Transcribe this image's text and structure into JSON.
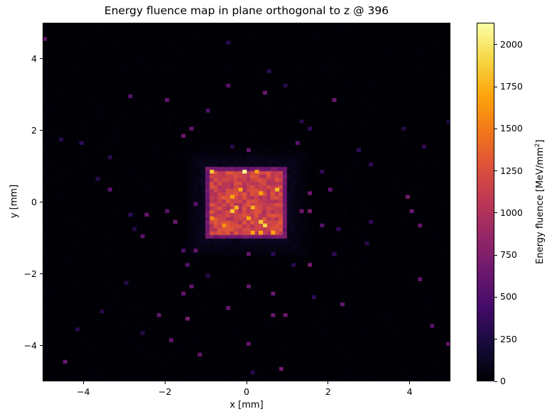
{
  "chart_data": {
    "type": "heatmap",
    "title": "Energy fluence map in plane orthogonal to z @ 396",
    "xlabel": "x [mm]",
    "ylabel": "y [mm]",
    "colorbar_label_main": "Energy fluence [MeV/mm",
    "colorbar_label_sup": "2",
    "colorbar_label_end": "]",
    "colormap": "inferno",
    "xlim": [
      -5,
      5
    ],
    "ylim": [
      -5,
      5
    ],
    "clim": [
      0,
      2130
    ],
    "bins": [
      100,
      100
    ],
    "xticks": [
      -4,
      -2,
      0,
      2,
      4
    ],
    "yticks": [
      -4,
      -2,
      0,
      2,
      4
    ],
    "cticks": [
      0,
      250,
      500,
      750,
      1000,
      1250,
      1500,
      1750,
      2000
    ],
    "field": {
      "x_range": [
        -1,
        1
      ],
      "y_range": [
        -1,
        1
      ],
      "typical_value": 1150,
      "edge_value": 600,
      "halo_value": 90,
      "background_value": 15
    },
    "hot_bins": [
      [
        -0.05,
        0.86,
        2100
      ],
      [
        -0.85,
        0.86,
        1850
      ],
      [
        0.26,
        0.86,
        1650
      ],
      [
        0.77,
        0.37,
        1800
      ],
      [
        -0.14,
        0.37,
        1700
      ],
      [
        0.36,
        0.23,
        1700
      ],
      [
        -0.35,
        0.17,
        1700
      ],
      [
        -0.26,
        -0.15,
        1750
      ],
      [
        -0.35,
        -0.25,
        1850
      ],
      [
        0.16,
        -0.15,
        1750
      ],
      [
        0.05,
        -0.45,
        1700
      ],
      [
        0.36,
        -0.55,
        1850
      ],
      [
        0.46,
        -0.65,
        1900
      ],
      [
        0.66,
        -0.85,
        1700
      ],
      [
        0.16,
        -0.85,
        1700
      ],
      [
        0.36,
        -0.9,
        1700
      ],
      [
        -0.55,
        -0.65,
        1600
      ],
      [
        -0.85,
        -0.45,
        1550
      ]
    ],
    "sparse_bins": [
      [
        -4.95,
        4.55,
        600
      ],
      [
        -0.49,
        4.45,
        300
      ],
      [
        0.54,
        3.65,
        300
      ],
      [
        -0.45,
        3.26,
        550
      ],
      [
        0.44,
        3.06,
        650
      ],
      [
        0.94,
        3.2,
        300
      ],
      [
        -2.86,
        2.96,
        550
      ],
      [
        -1.97,
        2.86,
        600
      ],
      [
        2.14,
        2.86,
        650
      ],
      [
        -0.96,
        2.54,
        500
      ],
      [
        1.36,
        2.27,
        300
      ],
      [
        -1.38,
        2.07,
        600
      ],
      [
        1.57,
        2.03,
        350
      ],
      [
        -1.55,
        1.87,
        650
      ],
      [
        -4.55,
        1.75,
        300
      ],
      [
        -4.04,
        1.65,
        350
      ],
      [
        0.05,
        1.45,
        600
      ],
      [
        -0.33,
        1.6,
        300
      ],
      [
        1.27,
        1.67,
        550
      ],
      [
        2.75,
        1.45,
        350
      ],
      [
        4.36,
        1.55,
        350
      ],
      [
        3.82,
        2.05,
        300
      ],
      [
        4.9,
        2.27,
        300
      ],
      [
        -3.34,
        1.25,
        300
      ],
      [
        3.08,
        1.04,
        350
      ],
      [
        1.88,
        0.88,
        350
      ],
      [
        -3.6,
        0.68,
        300
      ],
      [
        -3.34,
        0.38,
        550
      ],
      [
        2.0,
        0.38,
        600
      ],
      [
        1.55,
        0.2,
        650
      ],
      [
        3.94,
        0.17,
        700
      ],
      [
        -1.24,
        -0.03,
        550
      ],
      [
        4.06,
        -0.25,
        650
      ],
      [
        -2.86,
        -0.33,
        350
      ],
      [
        -2.46,
        -0.35,
        600
      ],
      [
        -1.93,
        -0.25,
        550
      ],
      [
        1.6,
        -0.23,
        700
      ],
      [
        1.34,
        -0.23,
        650
      ],
      [
        -1.76,
        -0.56,
        650
      ],
      [
        -2.77,
        -0.74,
        300
      ],
      [
        -2.56,
        -0.92,
        550
      ],
      [
        1.88,
        -0.64,
        550
      ],
      [
        2.26,
        -0.72,
        350
      ],
      [
        4.27,
        -0.64,
        600
      ],
      [
        3.05,
        -0.56,
        350
      ],
      [
        -1.29,
        -1.34,
        600
      ],
      [
        -1.53,
        -1.34,
        500
      ],
      [
        0.05,
        -1.44,
        600
      ],
      [
        0.62,
        -1.42,
        350
      ],
      [
        1.15,
        -1.73,
        300
      ],
      [
        1.53,
        -1.75,
        700
      ],
      [
        -1.46,
        -1.73,
        500
      ],
      [
        2.18,
        -1.44,
        350
      ],
      [
        2.96,
        -1.16,
        300
      ],
      [
        -0.91,
        -2.01,
        300
      ],
      [
        -1.36,
        -2.35,
        600
      ],
      [
        1.64,
        -2.64,
        350
      ],
      [
        4.29,
        -2.15,
        600
      ],
      [
        -1.55,
        -2.55,
        600
      ],
      [
        -0.45,
        -2.94,
        600
      ],
      [
        0.66,
        -3.12,
        650
      ],
      [
        0.94,
        -3.12,
        650
      ],
      [
        -2.14,
        -3.14,
        600
      ],
      [
        -1.45,
        -3.24,
        700
      ],
      [
        2.35,
        -2.84,
        600
      ],
      [
        -3.54,
        -3.06,
        300
      ],
      [
        -4.16,
        -3.53,
        300
      ],
      [
        4.5,
        -3.44,
        550
      ],
      [
        -1.85,
        -3.83,
        600
      ],
      [
        0.03,
        -3.95,
        600
      ],
      [
        4.95,
        -3.95,
        650
      ],
      [
        -1.15,
        -4.23,
        600
      ],
      [
        -4.44,
        -4.45,
        600
      ],
      [
        0.85,
        -4.65,
        700
      ],
      [
        0.16,
        -4.75,
        300
      ],
      [
        0.05,
        -2.37,
        600
      ],
      [
        0.66,
        -2.6,
        650
      ],
      [
        -2.53,
        -3.6,
        300
      ],
      [
        -2.94,
        -2.25,
        300
      ]
    ]
  }
}
